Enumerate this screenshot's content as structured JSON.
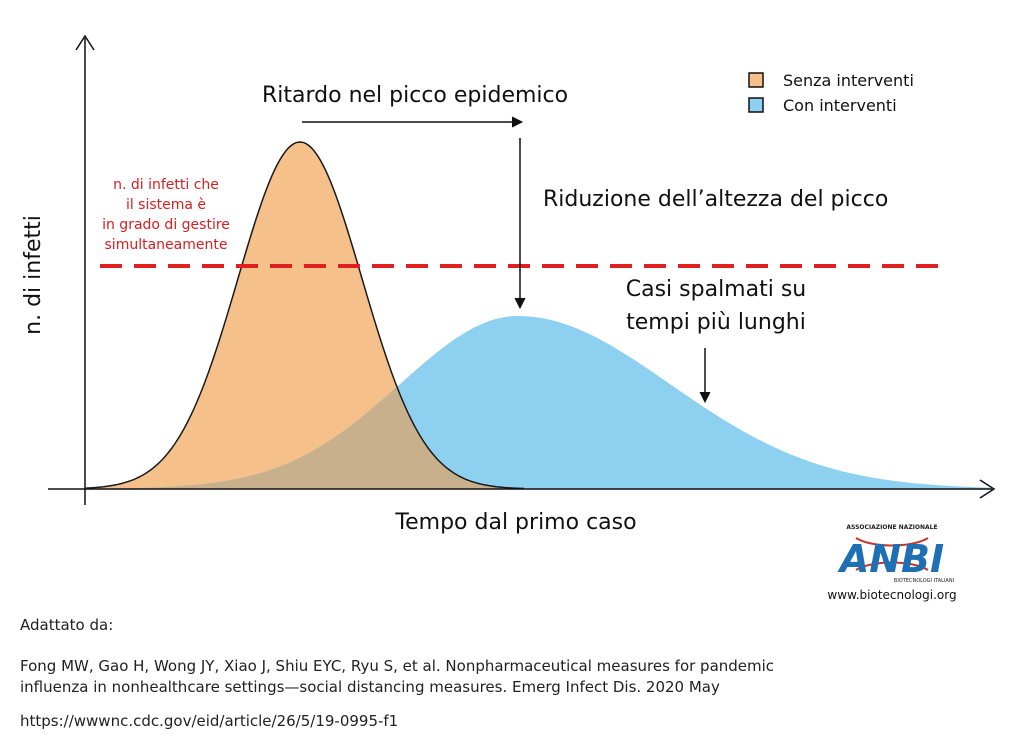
{
  "diagram": {
    "y_axis_label": "n. di infetti",
    "x_axis_label": "Tempo dal primo caso",
    "delay_label": "Ritardo nel picco epidemico",
    "reduction_label": "Riduzione dell’altezza del picco",
    "spread_label_line1": "Casi spalmati su",
    "spread_label_line2": "tempi più lunghi",
    "capacity_label": [
      "n. di infetti che",
      "il sistema è",
      "in grado di gestire",
      "simultaneamente"
    ],
    "legend": [
      {
        "label": "Senza interventi",
        "color": "#f5c08a"
      },
      {
        "label": "Con interventi",
        "color": "#8dd0f0"
      }
    ],
    "colors": {
      "without_interventions": "#f5c08a",
      "with_interventions": "#8dd0f0",
      "overlap": "#c8b08c",
      "capacity_line": "#e02020",
      "capacity_text": "#d42020"
    }
  },
  "logo": {
    "letters": "ANBI",
    "top_text": "ASSOCIAZIONE NAZIONALE",
    "bottom_text": "BIOTECNOLOGI ITALIANI",
    "url": "www.biotecnologi.org"
  },
  "footer": {
    "adapted": "Adattato da:",
    "citation_line1": "Fong MW, Gao H, Wong JY, Xiao J, Shiu EYC, Ryu S, et al. Nonpharmaceutical measures for pandemic",
    "citation_line2": "influenza in nonhealthcare settings—social distancing measures. Emerg Infect Dis. 2020 May",
    "url": "https://wwwnc.cdc.gov/eid/article/26/5/19-0995-f1"
  }
}
